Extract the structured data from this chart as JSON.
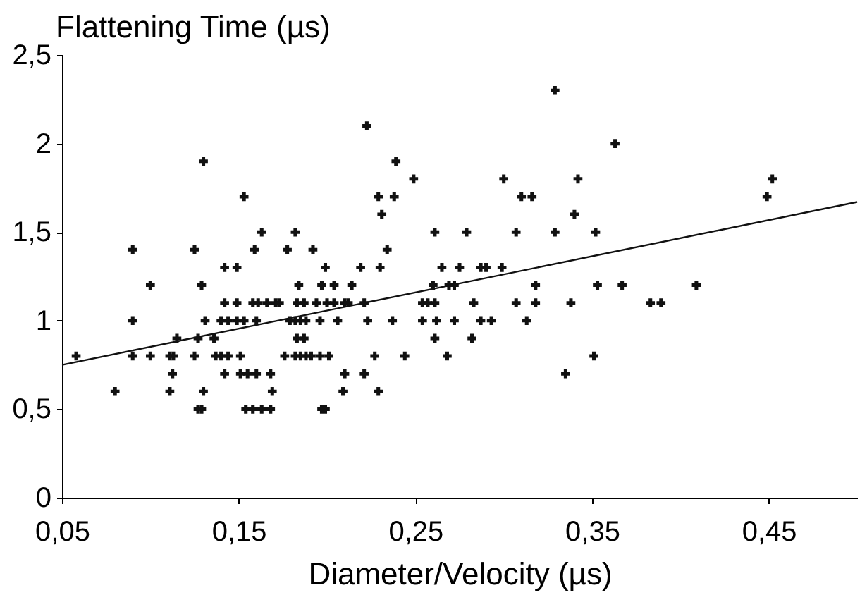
{
  "chart_data": {
    "type": "scatter",
    "ylabel": "Flattening Time (µs)",
    "xlabel": "Diameter/Velocity (µs)",
    "xlim": [
      0.05,
      0.5
    ],
    "ylim": [
      0,
      2.5
    ],
    "xticks": [
      {
        "value": 0.05,
        "label": "0,05"
      },
      {
        "value": 0.15,
        "label": "0,15"
      },
      {
        "value": 0.25,
        "label": "0,25"
      },
      {
        "value": 0.35,
        "label": "0,35"
      },
      {
        "value": 0.45,
        "label": "0,45"
      }
    ],
    "yticks": [
      0,
      {
        "value": 0.5,
        "label": "0,5"
      },
      1,
      {
        "value": 1.5,
        "label": "1,5"
      },
      2,
      {
        "value": 2.5,
        "label": "2,5"
      }
    ],
    "grid": false,
    "marker": "cross",
    "series": [
      {
        "color": "#111111",
        "x": [
          0.329,
          0.2225,
          0.363,
          0.13,
          0.239,
          0.249,
          0.3,
          0.342,
          0.452,
          0.153,
          0.229,
          0.238,
          0.31,
          0.316,
          0.449,
          0.231,
          0.34,
          0.163,
          0.182,
          0.261,
          0.279,
          0.307,
          0.329,
          0.352,
          0.09,
          0.125,
          0.159,
          0.1775,
          0.192,
          0.234,
          0.142,
          0.149,
          0.199,
          0.219,
          0.23,
          0.265,
          0.275,
          0.287,
          0.29,
          0.299,
          0.1,
          0.129,
          0.184,
          0.197,
          0.204,
          0.214,
          0.26,
          0.269,
          0.272,
          0.318,
          0.353,
          0.367,
          0.409,
          0.142,
          0.149,
          0.158,
          0.161,
          0.166,
          0.171,
          0.173,
          0.183,
          0.187,
          0.194,
          0.2,
          0.204,
          0.21,
          0.212,
          0.221,
          0.254,
          0.257,
          0.261,
          0.283,
          0.307,
          0.318,
          0.338,
          0.383,
          0.389,
          0.09,
          0.131,
          0.14,
          0.144,
          0.149,
          0.153,
          0.16,
          0.179,
          0.182,
          0.185,
          0.188,
          0.196,
          0.206,
          0.223,
          0.237,
          0.254,
          0.262,
          0.272,
          0.287,
          0.293,
          0.313,
          0.115,
          0.127,
          0.136,
          0.183,
          0.187,
          0.261,
          0.282,
          0.058,
          0.09,
          0.1,
          0.111,
          0.113,
          0.125,
          0.137,
          0.14,
          0.144,
          0.151,
          0.176,
          0.182,
          0.185,
          0.188,
          0.191,
          0.196,
          0.201,
          0.227,
          0.244,
          0.268,
          0.351,
          0.1125,
          0.142,
          0.151,
          0.155,
          0.16,
          0.168,
          0.21,
          0.221,
          0.335,
          0.08,
          0.111,
          0.13,
          0.169,
          0.209,
          0.229,
          0.127,
          0.129,
          0.154,
          0.158,
          0.163,
          0.168,
          0.197,
          0.199
        ],
        "values": [
          2.3,
          2.1,
          2.0,
          1.9,
          1.9,
          1.8,
          1.8,
          1.8,
          1.8,
          1.7,
          1.7,
          1.7,
          1.7,
          1.7,
          1.7,
          1.6,
          1.6,
          1.5,
          1.5,
          1.5,
          1.5,
          1.5,
          1.5,
          1.5,
          1.4,
          1.4,
          1.4,
          1.4,
          1.4,
          1.4,
          1.3,
          1.3,
          1.3,
          1.3,
          1.3,
          1.3,
          1.3,
          1.3,
          1.3,
          1.3,
          1.2,
          1.2,
          1.2,
          1.2,
          1.2,
          1.2,
          1.2,
          1.2,
          1.2,
          1.2,
          1.2,
          1.2,
          1.2,
          1.1,
          1.1,
          1.1,
          1.1,
          1.1,
          1.1,
          1.1,
          1.1,
          1.1,
          1.1,
          1.1,
          1.1,
          1.1,
          1.1,
          1.1,
          1.1,
          1.1,
          1.1,
          1.1,
          1.1,
          1.1,
          1.1,
          1.1,
          1.1,
          1.0,
          1.0,
          1.0,
          1.0,
          1.0,
          1.0,
          1.0,
          1.0,
          1.0,
          1.0,
          1.0,
          1.0,
          1.0,
          1.0,
          1.0,
          1.0,
          1.0,
          1.0,
          1.0,
          1.0,
          1.0,
          0.9,
          0.9,
          0.9,
          0.9,
          0.9,
          0.9,
          0.9,
          0.8,
          0.8,
          0.8,
          0.8,
          0.8,
          0.8,
          0.8,
          0.8,
          0.8,
          0.8,
          0.8,
          0.8,
          0.8,
          0.8,
          0.8,
          0.8,
          0.8,
          0.8,
          0.8,
          0.8,
          0.8,
          0.7,
          0.7,
          0.7,
          0.7,
          0.7,
          0.7,
          0.7,
          0.7,
          0.7,
          0.6,
          0.6,
          0.6,
          0.6,
          0.6,
          0.6,
          0.5,
          0.5,
          0.5,
          0.5,
          0.5,
          0.5,
          0.5,
          0.5
        ]
      },
      {
        "type": "line",
        "marker": "none",
        "color": "#111111",
        "x": [
          0.05,
          0.5
        ],
        "values": [
          0.75,
          1.67
        ]
      }
    ]
  }
}
